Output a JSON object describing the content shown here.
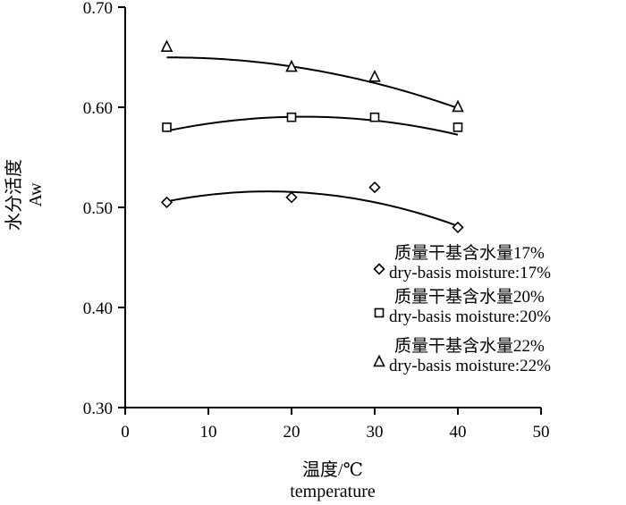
{
  "chart_data": {
    "type": "scatter",
    "xlabel": [
      "温度/℃",
      "temperature"
    ],
    "ylabel": [
      "水分活度",
      "Aw"
    ],
    "xlim": [
      0,
      50
    ],
    "ylim": [
      0.3,
      0.7
    ],
    "xticks": [
      0,
      10,
      20,
      30,
      40,
      50
    ],
    "xtick_labels": [
      "0",
      "10",
      "20",
      "30",
      "40",
      "50"
    ],
    "yticks": [
      0.3,
      0.4,
      0.5,
      0.6,
      0.7
    ],
    "ytick_labels": [
      "0.30",
      "0.40",
      "0.50",
      "0.60",
      "0.70"
    ],
    "grid": false,
    "legend_position": "lower-right",
    "series": [
      {
        "name": [
          "质量干基含水量17%",
          "dry-basis moisture:17%"
        ],
        "marker": "diamond",
        "x": [
          5,
          20,
          30,
          40
        ],
        "y": [
          0.505,
          0.51,
          0.52,
          0.48
        ],
        "trend": [
          0.4961,
          0.0023,
          -6.67e-05
        ]
      },
      {
        "name": [
          "质量干基含水量20%",
          "dry-basis moisture:20%"
        ],
        "marker": "square",
        "x": [
          5,
          20,
          30,
          40
        ],
        "y": [
          0.58,
          0.59,
          0.59,
          0.58
        ],
        "trend": [
          0.5664,
          0.00225,
          -5.24e-05
        ]
      },
      {
        "name": [
          "质量干基含水量22%",
          "dry-basis moisture:22%"
        ],
        "marker": "triangle",
        "x": [
          5,
          20,
          30,
          40
        ],
        "y": [
          0.66,
          0.64,
          0.63,
          0.6
        ],
        "trend": [
          0.6485,
          0.000462,
          -4.24e-05
        ]
      }
    ]
  }
}
